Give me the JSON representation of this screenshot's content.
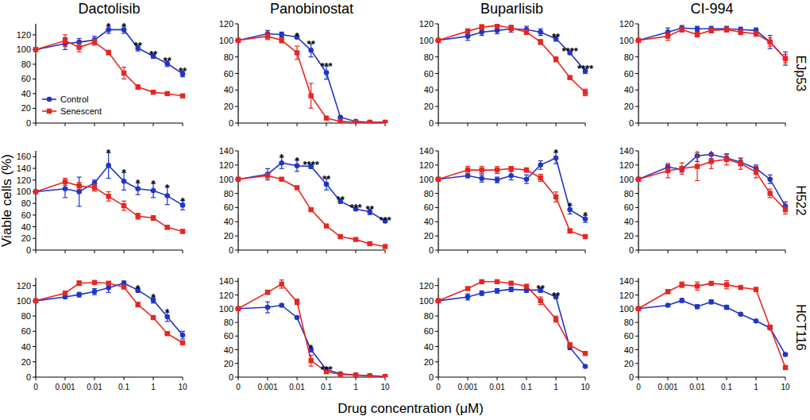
{
  "chart_data": {
    "type": "line",
    "xlabel": "Drug concentration (μM)",
    "ylabel": "Viable cells (%)",
    "columns": [
      "Dactolisib",
      "Panobinostat",
      "Buparlisib",
      "CI-994"
    ],
    "rows": [
      "EJp53",
      "H522",
      "HCT116"
    ],
    "log": "x",
    "legend": "lower left",
    "x": [
      0,
      0.001,
      0.003,
      0.01,
      0.03,
      0.1,
      0.3,
      1,
      3,
      10
    ],
    "xlim": [
      0,
      10
    ],
    "xticks": [
      0,
      0.001,
      0.01,
      0.1,
      1,
      10
    ],
    "series": [
      {
        "name": "Control",
        "color": "#1f35c8",
        "marker": "circle"
      },
      {
        "name": "Senescent",
        "color": "#e8251f",
        "marker": "square"
      }
    ],
    "panels": [
      {
        "ylim": [
          0,
          135
        ],
        "yticks": [
          0,
          20,
          40,
          60,
          80,
          100,
          120
        ],
        "series": [
          {
            "values": [
              100,
              108,
              110,
              113,
              127,
              127,
              102,
              91,
              81,
              67
            ],
            "errors": [
              0,
              8,
              5,
              5,
              5,
              5,
              4,
              3,
              4,
              4
            ]
          },
          {
            "values": [
              100,
              112,
              103,
              110,
              96,
              68,
              49,
              42,
              40,
              37
            ],
            "errors": [
              0,
              8,
              6,
              4,
              3,
              8,
              3,
              2,
              2,
              1
            ]
          }
        ],
        "significance": [
          null,
          null,
          null,
          null,
          "*",
          "*",
          "**",
          "**",
          "**",
          "**"
        ]
      },
      {
        "ylim": [
          0,
          120
        ],
        "yticks": [
          0,
          20,
          40,
          60,
          80,
          100,
          120
        ],
        "series": [
          {
            "values": [
              100,
              108,
              107,
              104,
              88,
              61,
              7,
              2,
              1,
              1
            ],
            "errors": [
              0,
              4,
              3,
              2,
              8,
              8,
              1,
              1,
              0,
              0
            ]
          },
          {
            "values": [
              100,
              105,
              100,
              85,
              33,
              6,
              2,
              1,
              1,
              1
            ],
            "errors": [
              0,
              4,
              3,
              8,
              15,
              2,
              1,
              0,
              0,
              0
            ]
          }
        ],
        "significance": [
          null,
          null,
          null,
          "*",
          "**",
          "***",
          null,
          null,
          null,
          null
        ]
      },
      {
        "ylim": [
          0,
          120
        ],
        "yticks": [
          0,
          20,
          40,
          60,
          80,
          100,
          120
        ],
        "series": [
          {
            "values": [
              100,
              105,
              110,
              112,
              114,
              113,
              110,
              102,
              85,
              63
            ],
            "errors": [
              0,
              5,
              4,
              4,
              4,
              4,
              4,
              3,
              2,
              3
            ]
          },
          {
            "values": [
              100,
              111,
              116,
              118,
              115,
              110,
              98,
              77,
              55,
              37
            ],
            "errors": [
              0,
              3,
              3,
              3,
              3,
              3,
              3,
              3,
              2,
              4
            ]
          }
        ],
        "significance": [
          null,
          null,
          null,
          null,
          null,
          null,
          null,
          "**",
          "****",
          "****"
        ]
      },
      {
        "ylim": [
          0,
          120
        ],
        "yticks": [
          0,
          20,
          40,
          60,
          80,
          100,
          120
        ],
        "series": [
          {
            "values": [
              100,
              110,
              115,
              114,
              114,
              114,
              113,
              112,
              98,
              78
            ],
            "errors": [
              0,
              5,
              3,
              3,
              3,
              3,
              3,
              3,
              8,
              8
            ]
          },
          {
            "values": [
              100,
              105,
              113,
              107,
              112,
              113,
              110,
              108,
              98,
              78
            ],
            "errors": [
              0,
              5,
              3,
              3,
              3,
              3,
              3,
              3,
              5,
              5
            ]
          }
        ],
        "significance": [
          null,
          null,
          null,
          null,
          null,
          null,
          null,
          null,
          null,
          null
        ]
      },
      {
        "ylim": [
          0,
          170
        ],
        "yticks": [
          0,
          20,
          40,
          60,
          80,
          100,
          120,
          140,
          160
        ],
        "series": [
          {
            "values": [
              100,
              105,
              100,
              115,
              145,
              118,
              105,
              102,
              93,
              77
            ],
            "errors": [
              0,
              15,
              25,
              5,
              22,
              15,
              10,
              12,
              15,
              8
            ]
          },
          {
            "values": [
              100,
              117,
              110,
              107,
              92,
              76,
              58,
              55,
              39,
              32
            ],
            "errors": [
              0,
              6,
              6,
              6,
              8,
              8,
              5,
              4,
              3,
              3
            ]
          }
        ],
        "significance": [
          null,
          null,
          null,
          null,
          "*",
          "*",
          "*",
          "*",
          "*",
          "*"
        ]
      },
      {
        "ylim": [
          0,
          140
        ],
        "yticks": [
          0,
          20,
          40,
          60,
          80,
          100,
          120,
          140
        ],
        "series": [
          {
            "values": [
              100,
              107,
              123,
              119,
              118,
              93,
              69,
              58,
              54,
              41
            ],
            "errors": [
              0,
              8,
              8,
              8,
              3,
              8,
              3,
              2,
              4,
              2
            ]
          },
          {
            "values": [
              100,
              105,
              100,
              88,
              57,
              34,
              19,
              15,
              9,
              5
            ],
            "errors": [
              0,
              3,
              2,
              2,
              2,
              2,
              1,
              1,
              1,
              1
            ]
          }
        ],
        "significance": [
          null,
          null,
          "*",
          "*",
          "****",
          "**",
          "**",
          "***",
          "**",
          "***"
        ]
      },
      {
        "ylim": [
          0,
          140
        ],
        "yticks": [
          0,
          20,
          40,
          60,
          80,
          100,
          120,
          140
        ],
        "series": [
          {
            "values": [
              100,
              105,
              101,
              99,
              105,
              100,
              120,
              130,
              57,
              44
            ],
            "errors": [
              0,
              3,
              5,
              4,
              6,
              6,
              6,
              8,
              6,
              5
            ]
          },
          {
            "values": [
              100,
              113,
              113,
              113,
              115,
              113,
              102,
              75,
              27,
              19
            ],
            "errors": [
              0,
              5,
              5,
              5,
              3,
              3,
              5,
              7,
              3,
              2
            ]
          }
        ],
        "significance": [
          null,
          null,
          null,
          null,
          null,
          null,
          null,
          "*",
          "*",
          "*"
        ]
      },
      {
        "ylim": [
          0,
          140
        ],
        "yticks": [
          0,
          20,
          40,
          60,
          80,
          100,
          120,
          140
        ],
        "series": [
          {
            "values": [
              100,
              117,
              114,
              133,
              135,
              130,
              124,
              115,
              100,
              62
            ],
            "errors": [
              0,
              4,
              4,
              8,
              6,
              5,
              5,
              5,
              6,
              6
            ]
          },
          {
            "values": [
              100,
              112,
              115,
              118,
              125,
              128,
              122,
              110,
              80,
              57
            ],
            "errors": [
              0,
              10,
              8,
              20,
              10,
              8,
              8,
              8,
              6,
              6
            ]
          }
        ],
        "significance": [
          null,
          null,
          null,
          null,
          null,
          null,
          null,
          null,
          null,
          null
        ]
      },
      {
        "ylim": [
          0,
          130
        ],
        "yticks": [
          0,
          20,
          40,
          60,
          80,
          100,
          120
        ],
        "series": [
          {
            "values": [
              100,
              105,
              108,
              112,
              117,
              123,
              114,
              101,
              79,
              55
            ],
            "errors": [
              0,
              2,
              3,
              4,
              6,
              3,
              3,
              4,
              6,
              5
            ]
          },
          {
            "values": [
              100,
              110,
              123,
              124,
              123,
              118,
              95,
              78,
              57,
              45
            ],
            "errors": [
              0,
              2,
              3,
              2,
              2,
              2,
              3,
              2,
              1,
              1
            ]
          }
        ],
        "significance": [
          null,
          null,
          null,
          null,
          null,
          null,
          "*",
          "*",
          "*",
          null
        ]
      },
      {
        "ylim": [
          0,
          145
        ],
        "yticks": [
          0,
          20,
          40,
          60,
          80,
          100,
          120,
          140
        ],
        "series": [
          {
            "values": [
              100,
              102,
              105,
              87,
              40,
              11,
              5,
              3,
              2,
              1
            ],
            "errors": [
              0,
              8,
              2,
              1,
              3,
              1,
              1,
              0,
              0,
              0
            ]
          },
          {
            "values": [
              100,
              124,
              136,
              110,
              24,
              8,
              4,
              3,
              2,
              1
            ],
            "errors": [
              0,
              3,
              6,
              4,
              8,
              1,
              1,
              0,
              0,
              0
            ]
          }
        ],
        "significance": [
          null,
          null,
          null,
          null,
          "*",
          "***",
          null,
          null,
          null,
          null
        ]
      },
      {
        "ylim": [
          0,
          130
        ],
        "yticks": [
          0,
          20,
          40,
          60,
          80,
          100,
          120
        ],
        "series": [
          {
            "values": [
              100,
              105,
              110,
              113,
              115,
              114,
              114,
              105,
              39,
              14
            ],
            "errors": [
              0,
              4,
              3,
              3,
              3,
              3,
              3,
              2,
              3,
              1
            ]
          },
          {
            "values": [
              100,
              116,
              125,
              125,
              123,
              119,
              100,
              76,
              42,
              31
            ],
            "errors": [
              0,
              2,
              2,
              2,
              2,
              2,
              5,
              4,
              3,
              2
            ]
          }
        ],
        "significance": [
          null,
          null,
          null,
          null,
          null,
          null,
          "**",
          "**",
          null,
          null
        ]
      },
      {
        "ylim": [
          0,
          145
        ],
        "yticks": [
          0,
          20,
          40,
          60,
          80,
          100,
          120,
          140
        ],
        "series": [
          {
            "values": [
              100,
              105,
              112,
              103,
              110,
              102,
              92,
              82,
              72,
              33
            ],
            "errors": [
              0,
              2,
              3,
              3,
              3,
              3,
              2,
              2,
              2,
              2
            ]
          },
          {
            "values": [
              100,
              125,
              135,
              133,
              137,
              135,
              131,
              128,
              73,
              14
            ],
            "errors": [
              0,
              3,
              4,
              6,
              2,
              6,
              2,
              3,
              2,
              1
            ]
          }
        ],
        "significance": [
          null,
          null,
          null,
          null,
          null,
          null,
          null,
          null,
          null,
          null
        ]
      }
    ]
  }
}
